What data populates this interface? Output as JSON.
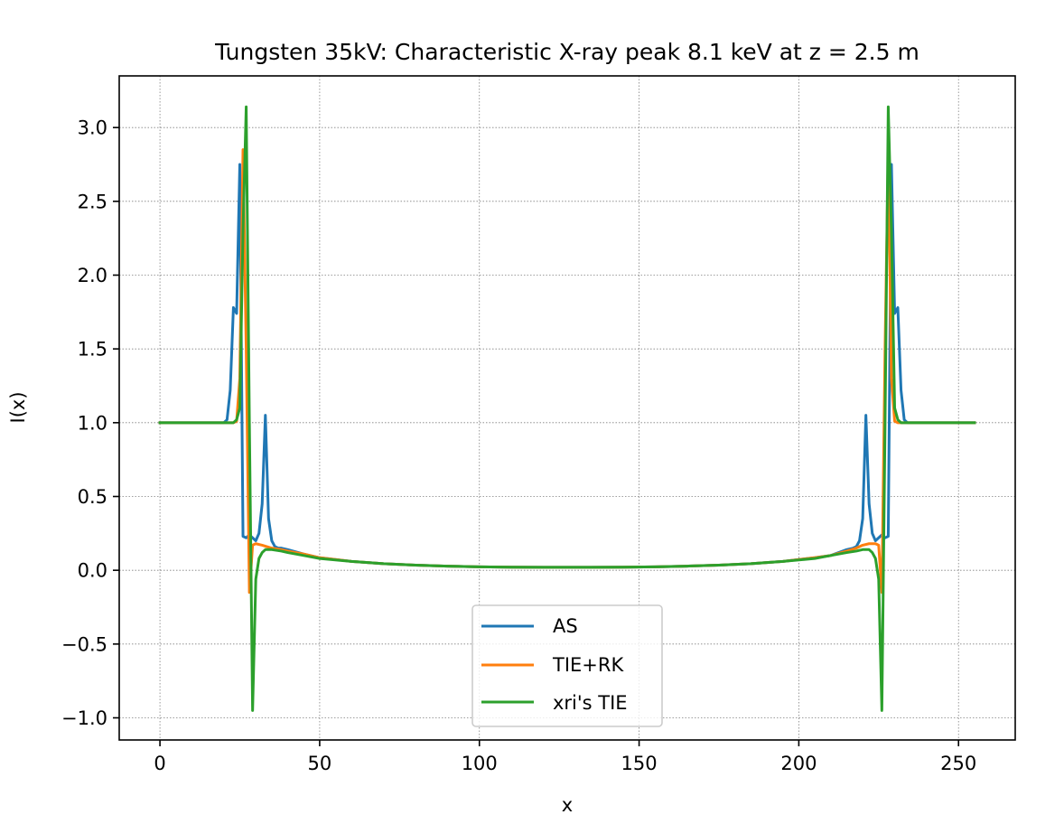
{
  "chart_data": {
    "type": "line",
    "title": "Tungsten 35kV: Characteristic X-ray peak 8.1 keV at z = 2.5 m",
    "xlabel": "x",
    "ylabel": "I(x)",
    "xlim": [
      -12.75,
      267.75
    ],
    "ylim": [
      -1.15,
      3.35
    ],
    "xticks": [
      0,
      50,
      100,
      150,
      200,
      250
    ],
    "yticks": [
      -1.0,
      -0.5,
      0.0,
      0.5,
      1.0,
      1.5,
      2.0,
      2.5,
      3.0
    ],
    "grid": true,
    "legend_position": "lower center",
    "series": [
      {
        "name": "AS",
        "color": "#1f77b4",
        "x": [
          0,
          10,
          20,
          21,
          22,
          23,
          24,
          25,
          26,
          27,
          28,
          29,
          30,
          31,
          32,
          33,
          34,
          35,
          36,
          37,
          38,
          40,
          45,
          50,
          60,
          70,
          80,
          90,
          100,
          110,
          120,
          127,
          135,
          145,
          155,
          165,
          175,
          185,
          195,
          205,
          210,
          215,
          217,
          218,
          219,
          220,
          221,
          222,
          223,
          224,
          225,
          226,
          227,
          228,
          229,
          230,
          231,
          232,
          233,
          234,
          235,
          245,
          255
        ],
        "y": [
          1.0,
          1.0,
          1.0,
          1.02,
          1.22,
          1.78,
          1.74,
          2.75,
          0.23,
          0.22,
          0.24,
          0.22,
          0.2,
          0.25,
          0.45,
          1.05,
          0.35,
          0.2,
          0.16,
          0.15,
          0.15,
          0.14,
          0.11,
          0.085,
          0.06,
          0.045,
          0.035,
          0.028,
          0.023,
          0.021,
          0.02,
          0.02,
          0.02,
          0.021,
          0.023,
          0.028,
          0.035,
          0.045,
          0.06,
          0.085,
          0.1,
          0.14,
          0.15,
          0.16,
          0.2,
          0.35,
          1.05,
          0.45,
          0.25,
          0.2,
          0.22,
          0.24,
          0.22,
          0.23,
          2.75,
          1.74,
          1.78,
          1.22,
          1.02,
          1.0,
          1.0,
          1.0,
          1.0
        ]
      },
      {
        "name": "TIE+RK",
        "color": "#ff7f0e",
        "x": [
          0,
          10,
          20,
          23,
          24,
          25,
          26,
          27,
          28,
          29,
          30,
          32,
          35,
          38,
          40,
          45,
          50,
          60,
          70,
          80,
          90,
          100,
          110,
          120,
          127,
          135,
          145,
          155,
          165,
          175,
          185,
          195,
          205,
          210,
          215,
          218,
          220,
          222,
          224,
          225,
          226,
          227,
          228,
          229,
          230,
          231,
          232,
          235,
          245,
          255
        ],
        "y": [
          1.0,
          1.0,
          1.0,
          1.0,
          1.01,
          1.3,
          2.85,
          1.5,
          -0.15,
          0.17,
          0.18,
          0.17,
          0.15,
          0.14,
          0.13,
          0.11,
          0.085,
          0.06,
          0.045,
          0.035,
          0.028,
          0.023,
          0.021,
          0.02,
          0.02,
          0.02,
          0.021,
          0.023,
          0.028,
          0.035,
          0.045,
          0.06,
          0.085,
          0.1,
          0.13,
          0.15,
          0.17,
          0.18,
          0.18,
          0.17,
          -0.15,
          1.5,
          2.85,
          1.3,
          1.01,
          1.0,
          1.0,
          1.0,
          1.0,
          1.0
        ]
      },
      {
        "name": "xri's TIE",
        "color": "#2ca02c",
        "x": [
          0,
          10,
          20,
          23,
          24,
          25,
          26,
          27,
          28,
          29,
          30,
          31,
          32,
          33,
          35,
          38,
          40,
          45,
          50,
          60,
          70,
          80,
          90,
          100,
          110,
          120,
          127,
          135,
          145,
          155,
          165,
          175,
          185,
          195,
          205,
          210,
          215,
          218,
          220,
          222,
          223,
          224,
          225,
          226,
          227,
          228,
          229,
          230,
          231,
          232,
          235,
          245,
          255
        ],
        "y": [
          1.0,
          1.0,
          1.0,
          1.0,
          1.02,
          1.1,
          2.3,
          3.14,
          1.0,
          -0.95,
          -0.06,
          0.08,
          0.12,
          0.14,
          0.14,
          0.13,
          0.12,
          0.1,
          0.08,
          0.06,
          0.045,
          0.035,
          0.028,
          0.023,
          0.021,
          0.02,
          0.02,
          0.02,
          0.021,
          0.023,
          0.028,
          0.035,
          0.045,
          0.06,
          0.08,
          0.1,
          0.12,
          0.13,
          0.14,
          0.14,
          0.12,
          0.08,
          -0.06,
          -0.95,
          1.0,
          3.14,
          2.3,
          1.1,
          1.02,
          1.0,
          1.0,
          1.0,
          1.0
        ]
      }
    ]
  }
}
